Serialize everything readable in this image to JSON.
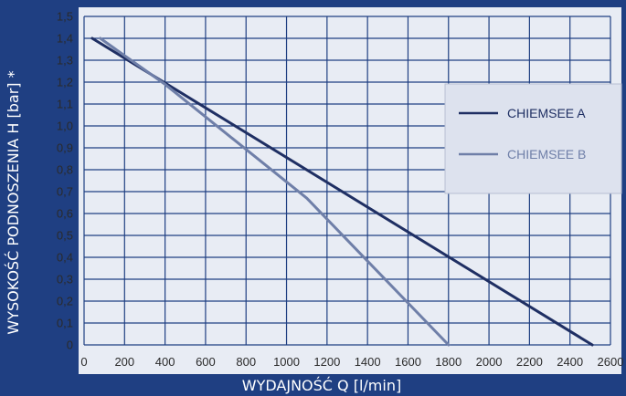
{
  "chart_data": {
    "type": "line",
    "xlabel": "WYDAJNOŚĆ Q [l/min]",
    "ylabel": "WYSOKOŚĆ PODNOSZENIA  H [bar] *",
    "xlim": [
      0,
      2600
    ],
    "ylim": [
      0,
      1.5
    ],
    "x_ticks": [
      "0",
      "200",
      "400",
      "600",
      "800",
      "1000",
      "1200",
      "1400",
      "1600",
      "1800",
      "2000",
      "2200",
      "2400",
      "2600"
    ],
    "y_ticks": [
      "0",
      "0,1",
      "0,2",
      "0,3",
      "0,4",
      "0,5",
      "0,6",
      "0,7",
      "0,8",
      "0,9",
      "1,0",
      "1,1",
      "1,2",
      "1,3",
      "1,4",
      "1,5"
    ],
    "grid": true,
    "legend_position": "right",
    "series": [
      {
        "name": "CHIEMSEE A",
        "color": "#1f2f63",
        "x": [
          40,
          2510
        ],
        "y": [
          1.4,
          0
        ]
      },
      {
        "name": "CHIEMSEE B",
        "color": "#6f7fa8",
        "x": [
          80,
          400,
          1100,
          1800
        ],
        "y": [
          1.4,
          1.19,
          0.67,
          0
        ]
      }
    ]
  }
}
